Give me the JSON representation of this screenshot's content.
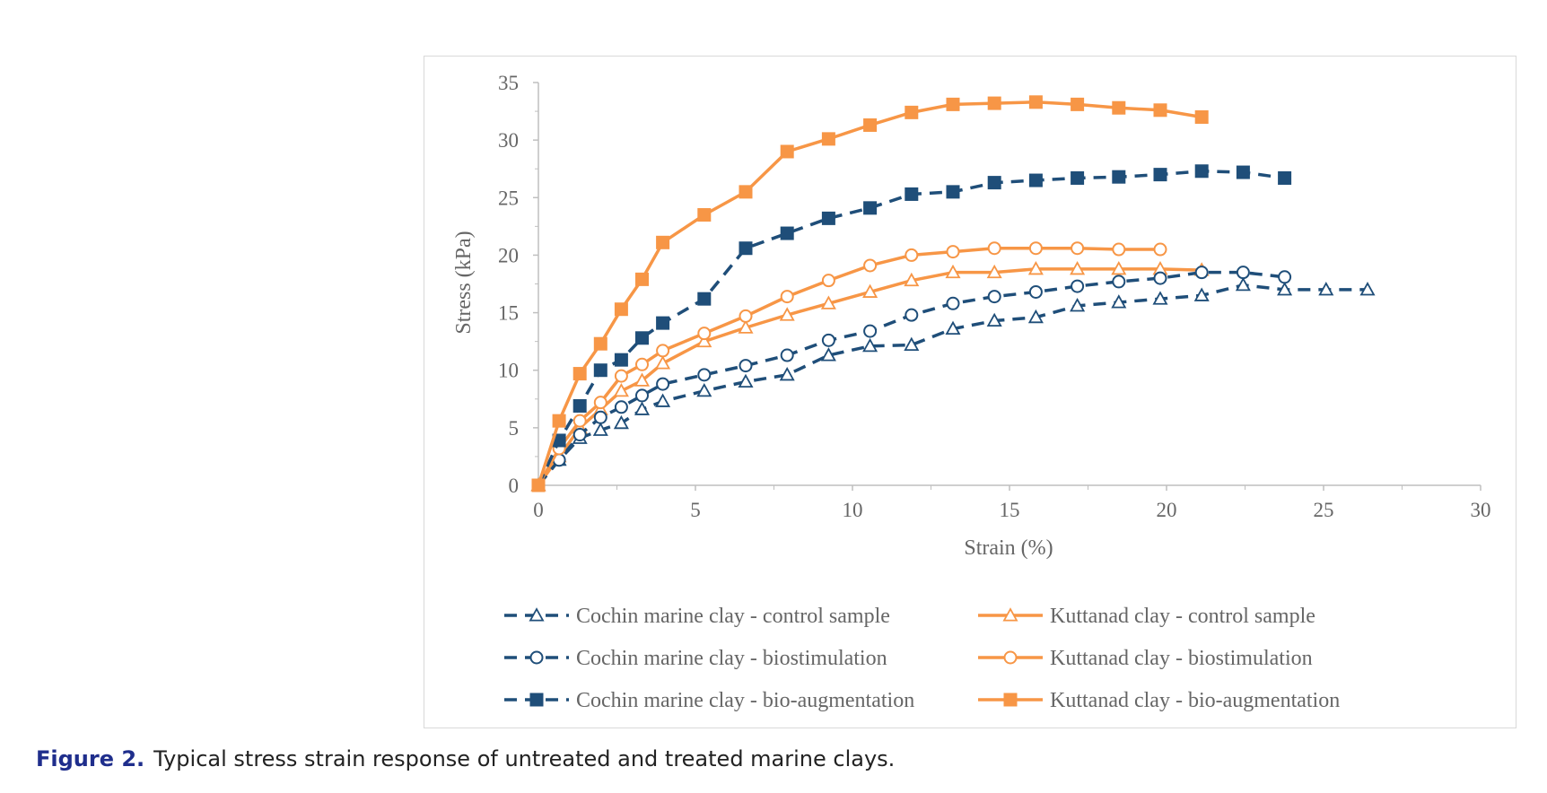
{
  "caption": {
    "label": "Figure 2.",
    "text": "Typical stress strain response of untreated and treated marine clays."
  },
  "colors": {
    "cochin": "#1f4e79",
    "kuttanad": "#f79646",
    "axis": "#bfbfbf",
    "text": "#666666"
  },
  "chart_data": {
    "type": "line",
    "xlabel": "Strain (%)",
    "ylabel": "Stress (kPa)",
    "xlim": [
      0,
      30
    ],
    "ylim": [
      0,
      35
    ],
    "xticks": [
      "0",
      "5",
      "10",
      "15",
      "20",
      "25",
      "30"
    ],
    "yticks": [
      "0",
      "5",
      "10",
      "15",
      "20",
      "25",
      "30",
      "35"
    ],
    "grid": false,
    "legend_position": "bottom",
    "series": [
      {
        "name": "Cochin marine clay - control sample",
        "color": "#1f4e79",
        "dash": true,
        "marker": "triangle-open",
        "x": [
          0,
          0.66,
          1.32,
          1.98,
          2.64,
          3.3,
          3.96,
          5.28,
          6.6,
          7.92,
          9.24,
          10.56,
          11.88,
          13.2,
          14.52,
          15.84,
          17.16,
          18.48,
          19.8,
          21.12,
          22.44,
          23.76,
          25.08,
          26.4
        ],
        "y": [
          0,
          2.2,
          4.1,
          4.8,
          5.4,
          6.6,
          7.3,
          8.2,
          9.0,
          9.6,
          11.3,
          12.1,
          12.2,
          13.6,
          14.3,
          14.6,
          15.6,
          15.9,
          16.2,
          16.5,
          17.4,
          17.0,
          17.0,
          17.0
        ]
      },
      {
        "name": "Kuttanad clay - control sample",
        "color": "#f79646",
        "dash": false,
        "marker": "triangle-open",
        "x": [
          0,
          0.66,
          1.32,
          1.98,
          2.64,
          3.3,
          3.96,
          5.28,
          6.6,
          7.92,
          9.24,
          10.56,
          11.88,
          13.2,
          14.52,
          15.84,
          17.16,
          18.48,
          19.8,
          21.12
        ],
        "y": [
          0,
          2.5,
          5.0,
          6.6,
          8.2,
          9.1,
          10.6,
          12.5,
          13.7,
          14.8,
          15.8,
          16.8,
          17.8,
          18.5,
          18.5,
          18.8,
          18.8,
          18.8,
          18.8,
          18.7
        ]
      },
      {
        "name": "Cochin marine clay - biostimulation",
        "color": "#1f4e79",
        "dash": true,
        "marker": "circle-open",
        "x": [
          0,
          0.66,
          1.32,
          1.98,
          2.64,
          3.3,
          3.96,
          5.28,
          6.6,
          7.92,
          9.24,
          10.56,
          11.88,
          13.2,
          14.52,
          15.84,
          17.16,
          18.48,
          19.8,
          21.12,
          22.44,
          23.76
        ],
        "y": [
          0,
          2.2,
          4.4,
          5.9,
          6.8,
          7.8,
          8.8,
          9.6,
          10.4,
          11.3,
          12.6,
          13.4,
          14.8,
          15.8,
          16.4,
          16.8,
          17.3,
          17.7,
          18.0,
          18.5,
          18.5,
          18.1
        ]
      },
      {
        "name": "Kuttanad clay - biostimulation",
        "color": "#f79646",
        "dash": false,
        "marker": "circle-open",
        "x": [
          0,
          0.66,
          1.32,
          1.98,
          2.64,
          3.3,
          3.96,
          5.28,
          6.6,
          7.92,
          9.24,
          10.56,
          11.88,
          13.2,
          14.52,
          15.84,
          17.16,
          18.48,
          19.8
        ],
        "y": [
          0,
          3.2,
          5.6,
          7.2,
          9.5,
          10.5,
          11.7,
          13.2,
          14.7,
          16.4,
          17.8,
          19.1,
          20.0,
          20.3,
          20.6,
          20.6,
          20.6,
          20.5,
          20.5
        ]
      },
      {
        "name": "Cochin marine clay - bio-augmentation",
        "color": "#1f4e79",
        "dash": true,
        "marker": "square-filled",
        "x": [
          0,
          0.66,
          1.32,
          1.98,
          2.64,
          3.3,
          3.96,
          5.28,
          6.6,
          7.92,
          9.24,
          10.56,
          11.88,
          13.2,
          14.52,
          15.84,
          17.16,
          18.48,
          19.8,
          21.12,
          22.44,
          23.76
        ],
        "y": [
          0,
          3.9,
          6.9,
          10.0,
          10.9,
          12.8,
          14.1,
          16.2,
          20.6,
          21.9,
          23.2,
          24.1,
          25.3,
          25.5,
          26.3,
          26.5,
          26.7,
          26.8,
          27.0,
          27.3,
          27.2,
          26.7
        ]
      },
      {
        "name": "Kuttanad clay - bio-augmentation",
        "color": "#f79646",
        "dash": false,
        "marker": "square-filled",
        "x": [
          0,
          0.66,
          1.32,
          1.98,
          2.64,
          3.3,
          3.96,
          5.28,
          6.6,
          7.92,
          9.24,
          10.56,
          11.88,
          13.2,
          14.52,
          15.84,
          17.16,
          18.48,
          19.8,
          21.12
        ],
        "y": [
          0,
          5.6,
          9.7,
          12.3,
          15.3,
          17.9,
          21.1,
          23.5,
          25.5,
          29.0,
          30.1,
          31.3,
          32.4,
          33.1,
          33.2,
          33.3,
          33.1,
          32.8,
          32.6,
          32.0
        ]
      }
    ]
  }
}
